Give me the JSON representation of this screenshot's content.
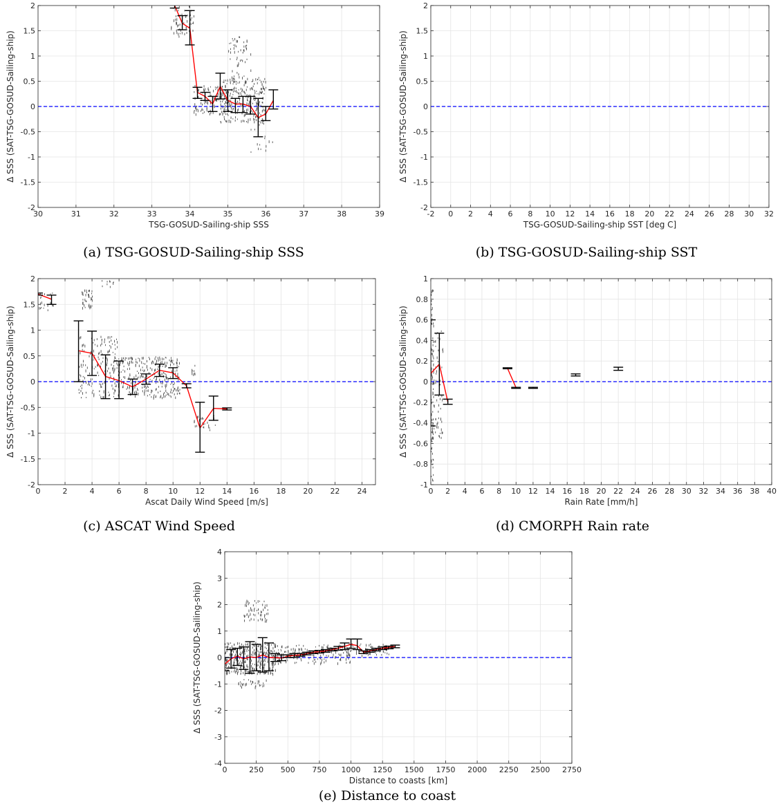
{
  "colors": {
    "mean": "#ff0000",
    "zero": "#0000ff",
    "errorbar": "#000000",
    "scatter": "#4d4d4d"
  },
  "chart_data": [
    {
      "id": "a",
      "type": "line",
      "caption": "(a) TSG-GOSUD-Sailing-ship SSS",
      "xlabel": "TSG-GOSUD-Sailing-ship SSS",
      "ylabel": "Δ SSS (SAT-TSG-GOSUD-Sailing-ship)",
      "xlim": [
        30,
        39
      ],
      "ylim": [
        -2,
        2
      ],
      "xticks": [
        30,
        31,
        32,
        33,
        34,
        35,
        36,
        37,
        38,
        39
      ],
      "yticks": [
        -2,
        -1.5,
        -1,
        -0.5,
        0,
        0.5,
        1,
        1.5,
        2
      ],
      "grid": true,
      "zero_line": 0,
      "mean": {
        "x": [
          33.6,
          33.8,
          34.0,
          34.2,
          34.4,
          34.6,
          34.8,
          35.0,
          35.2,
          35.4,
          35.6,
          35.8,
          36.0,
          36.2
        ],
        "y": [
          2.0,
          1.65,
          1.55,
          0.28,
          0.2,
          0.05,
          0.4,
          0.12,
          0.05,
          0.05,
          0.0,
          -0.22,
          -0.15,
          0.12
        ]
      },
      "errorbars": [
        {
          "x": 33.6,
          "lo": 1.95,
          "hi": 2.05
        },
        {
          "x": 33.8,
          "lo": 1.52,
          "hi": 1.8
        },
        {
          "x": 34.0,
          "lo": 1.22,
          "hi": 1.9
        },
        {
          "x": 34.2,
          "lo": 0.16,
          "hi": 0.38
        },
        {
          "x": 34.4,
          "lo": 0.12,
          "hi": 0.28
        },
        {
          "x": 34.6,
          "lo": -0.1,
          "hi": 0.2
        },
        {
          "x": 34.8,
          "lo": 0.15,
          "hi": 0.66
        },
        {
          "x": 35.0,
          "lo": -0.1,
          "hi": 0.33
        },
        {
          "x": 35.2,
          "lo": -0.12,
          "hi": 0.16
        },
        {
          "x": 35.4,
          "lo": -0.12,
          "hi": 0.2
        },
        {
          "x": 35.6,
          "lo": -0.15,
          "hi": 0.2
        },
        {
          "x": 35.8,
          "lo": -0.6,
          "hi": 0.16
        },
        {
          "x": 36.0,
          "lo": -0.28,
          "hi": 0.0
        },
        {
          "x": 36.2,
          "lo": -0.05,
          "hi": 0.33
        }
      ],
      "scatter_clusters": [
        {
          "x0": 33.5,
          "x1": 34.1,
          "y0": 1.4,
          "y1": 2.0,
          "n": 60
        },
        {
          "x0": 34.1,
          "x1": 35.0,
          "y0": -0.15,
          "y1": 0.45,
          "n": 120
        },
        {
          "x0": 34.8,
          "x1": 36.0,
          "y0": -0.3,
          "y1": 0.6,
          "n": 260
        },
        {
          "x0": 35.0,
          "x1": 35.6,
          "y0": 0.6,
          "y1": 1.4,
          "n": 50
        },
        {
          "x0": 35.6,
          "x1": 36.2,
          "y0": -0.9,
          "y1": -0.3,
          "n": 15
        }
      ]
    },
    {
      "id": "b",
      "type": "line",
      "caption": "(b) TSG-GOSUD-Sailing-ship SST",
      "xlabel": "TSG-GOSUD-Sailing-ship SST [deg C]",
      "ylabel": "Δ SSS (SAT-TSG-GOSUD-Sailing-ship)",
      "xlim": [
        -2,
        32
      ],
      "ylim": [
        -2,
        2
      ],
      "xticks": [
        -2,
        0,
        2,
        4,
        6,
        8,
        10,
        12,
        14,
        16,
        18,
        20,
        22,
        24,
        26,
        28,
        30,
        32
      ],
      "yticks": [
        -2,
        -1.5,
        -1,
        -0.5,
        0,
        0.5,
        1,
        1.5,
        2
      ],
      "grid": true,
      "zero_line": 0,
      "mean": {
        "x": [],
        "y": []
      },
      "errorbars": [],
      "scatter_clusters": []
    },
    {
      "id": "c",
      "type": "line",
      "caption": "(c) ASCAT Wind Speed",
      "xlabel": "Ascat Daily Wind Speed [m/s]",
      "ylabel": "Δ SSS (SAT-TSG-GOSUD-Sailing-ship)",
      "xlim": [
        0,
        25
      ],
      "ylim": [
        -2,
        2
      ],
      "xticks": [
        0,
        2,
        4,
        6,
        8,
        10,
        12,
        14,
        16,
        18,
        20,
        22,
        24
      ],
      "yticks": [
        -2,
        -1.5,
        -1,
        -0.5,
        0,
        0.5,
        1,
        1.5,
        2
      ],
      "grid": true,
      "zero_line": 0,
      "mean": {
        "x": [
          0,
          1,
          null,
          3,
          4,
          5,
          6,
          7,
          8,
          9,
          10,
          11,
          12,
          13,
          14
        ],
        "y": [
          1.7,
          1.6,
          null,
          0.6,
          0.55,
          0.1,
          0.02,
          -0.1,
          0.05,
          0.22,
          0.17,
          -0.08,
          -0.9,
          -0.52,
          -0.53
        ]
      },
      "errorbars": [
        {
          "x": 0,
          "lo": 1.68,
          "hi": 1.72
        },
        {
          "x": 1,
          "lo": 1.5,
          "hi": 1.68
        },
        {
          "x": 3,
          "lo": 0.0,
          "hi": 1.18
        },
        {
          "x": 4,
          "lo": 0.12,
          "hi": 0.98
        },
        {
          "x": 5,
          "lo": -0.33,
          "hi": 0.52
        },
        {
          "x": 6,
          "lo": -0.33,
          "hi": 0.4
        },
        {
          "x": 7,
          "lo": -0.25,
          "hi": 0.05
        },
        {
          "x": 8,
          "lo": -0.05,
          "hi": 0.15
        },
        {
          "x": 9,
          "lo": 0.1,
          "hi": 0.34
        },
        {
          "x": 10,
          "lo": 0.06,
          "hi": 0.27
        },
        {
          "x": 11,
          "lo": -0.12,
          "hi": -0.04
        },
        {
          "x": 12,
          "lo": -1.37,
          "hi": -0.4
        },
        {
          "x": 13,
          "lo": -0.75,
          "hi": -0.28
        },
        {
          "x": 14,
          "lo": -0.55,
          "hi": -0.51
        }
      ],
      "scatter_clusters": [
        {
          "x0": 0.0,
          "x1": 1.2,
          "y0": 1.4,
          "y1": 1.75,
          "n": 20
        },
        {
          "x0": 3.2,
          "x1": 4.0,
          "y0": 1.45,
          "y1": 1.8,
          "n": 40
        },
        {
          "x0": 4.6,
          "x1": 5.6,
          "y0": 1.85,
          "y1": 2.0,
          "n": 10
        },
        {
          "x0": 3.0,
          "x1": 6.0,
          "y0": -0.3,
          "y1": 0.9,
          "n": 160
        },
        {
          "x0": 5.5,
          "x1": 10.5,
          "y0": -0.3,
          "y1": 0.5,
          "n": 320
        },
        {
          "x0": 11.3,
          "x1": 11.8,
          "y0": 0.15,
          "y1": 0.35,
          "n": 10
        },
        {
          "x0": 11.5,
          "x1": 13.2,
          "y0": -0.95,
          "y1": -0.65,
          "n": 25
        }
      ]
    },
    {
      "id": "d",
      "type": "line",
      "caption": "(d) CMORPH Rain rate",
      "xlabel": "Rain Rate [mm/h]",
      "ylabel": "Δ SSS (SAT-TSG-GOSUD-Sailing-ship)",
      "xlim": [
        0,
        40
      ],
      "ylim": [
        -1,
        1
      ],
      "xticks": [
        0,
        2,
        4,
        6,
        8,
        10,
        12,
        14,
        16,
        18,
        20,
        22,
        24,
        26,
        28,
        30,
        32,
        34,
        36,
        38,
        40
      ],
      "yticks": [
        -1,
        -0.8,
        -0.6,
        -0.4,
        -0.2,
        0,
        0.2,
        0.4,
        0.6,
        0.8,
        1
      ],
      "grid": true,
      "zero_line": 0,
      "mean": {
        "x": [
          0,
          1,
          2,
          null,
          9,
          10
        ],
        "y": [
          0.08,
          0.17,
          -0.2,
          null,
          0.13,
          -0.06
        ]
      },
      "errorbars": [
        {
          "x": 0,
          "lo": -0.43,
          "hi": 0.6
        },
        {
          "x": 1,
          "lo": -0.13,
          "hi": 0.47
        },
        {
          "x": 2,
          "lo": -0.22,
          "hi": -0.17
        },
        {
          "x": 9,
          "lo": 0.125,
          "hi": 0.135
        },
        {
          "x": 10,
          "lo": -0.065,
          "hi": -0.055
        },
        {
          "x": 12,
          "lo": -0.065,
          "hi": -0.055
        },
        {
          "x": 17,
          "lo": 0.055,
          "hi": 0.075
        },
        {
          "x": 22,
          "lo": 0.11,
          "hi": 0.14
        }
      ],
      "scatter_clusters": [
        {
          "x0": 0.0,
          "x1": 0.3,
          "y0": -1.0,
          "y1": 0.9,
          "n": 90
        },
        {
          "x0": 0.3,
          "x1": 1.4,
          "y0": -0.55,
          "y1": 0.5,
          "n": 60
        }
      ]
    },
    {
      "id": "e",
      "type": "line",
      "caption": "(e) Distance to coast",
      "xlabel": "Distance to coasts [km]",
      "ylabel": "Δ SSS (SAT-TSG-GOSUD-Sailing-ship)",
      "xlim": [
        0,
        2750
      ],
      "ylim": [
        -4,
        4
      ],
      "xticks": [
        0,
        250,
        500,
        750,
        1000,
        1250,
        1500,
        1750,
        2000,
        2250,
        2500,
        2750
      ],
      "yticks": [
        -4,
        -3,
        -2,
        -1,
        0,
        1,
        2,
        3,
        4
      ],
      "grid": true,
      "zero_line": 0,
      "mean": {
        "x": [
          0,
          50,
          100,
          150,
          200,
          250,
          300,
          350,
          400,
          450,
          500,
          550,
          600,
          650,
          700,
          750,
          800,
          850,
          900,
          950,
          1000,
          1050,
          1100,
          1150,
          1200,
          1250,
          1300,
          1350
        ],
        "y": [
          -0.25,
          -0.05,
          0.05,
          -0.05,
          0.02,
          0.0,
          0.1,
          0.0,
          0.0,
          -0.02,
          0.05,
          0.08,
          0.1,
          0.15,
          0.2,
          0.22,
          0.25,
          0.3,
          0.35,
          0.42,
          0.5,
          0.45,
          0.2,
          0.25,
          0.3,
          0.35,
          0.38,
          0.42
        ]
      },
      "errorbars": [
        {
          "x": 0,
          "lo": -0.5,
          "hi": 0.0
        },
        {
          "x": 50,
          "lo": -0.4,
          "hi": 0.3
        },
        {
          "x": 100,
          "lo": -0.3,
          "hi": 0.35
        },
        {
          "x": 150,
          "lo": -0.45,
          "hi": 0.4
        },
        {
          "x": 200,
          "lo": -0.6,
          "hi": 0.6
        },
        {
          "x": 250,
          "lo": -0.5,
          "hi": 0.5
        },
        {
          "x": 300,
          "lo": -0.55,
          "hi": 0.75
        },
        {
          "x": 350,
          "lo": -0.5,
          "hi": 0.55
        },
        {
          "x": 400,
          "lo": -0.15,
          "hi": 0.15
        },
        {
          "x": 450,
          "lo": -0.12,
          "hi": 0.1
        },
        {
          "x": 500,
          "lo": 0.0,
          "hi": 0.1
        },
        {
          "x": 550,
          "lo": 0.0,
          "hi": 0.15
        },
        {
          "x": 600,
          "lo": 0.05,
          "hi": 0.15
        },
        {
          "x": 650,
          "lo": 0.1,
          "hi": 0.2
        },
        {
          "x": 700,
          "lo": 0.15,
          "hi": 0.25
        },
        {
          "x": 750,
          "lo": 0.17,
          "hi": 0.27
        },
        {
          "x": 800,
          "lo": 0.2,
          "hi": 0.3
        },
        {
          "x": 850,
          "lo": 0.25,
          "hi": 0.35
        },
        {
          "x": 900,
          "lo": 0.28,
          "hi": 0.42
        },
        {
          "x": 950,
          "lo": 0.3,
          "hi": 0.55
        },
        {
          "x": 1000,
          "lo": 0.35,
          "hi": 0.7
        },
        {
          "x": 1050,
          "lo": 0.3,
          "hi": 0.7
        },
        {
          "x": 1100,
          "lo": 0.15,
          "hi": 0.25
        },
        {
          "x": 1150,
          "lo": 0.2,
          "hi": 0.3
        },
        {
          "x": 1200,
          "lo": 0.25,
          "hi": 0.35
        },
        {
          "x": 1250,
          "lo": 0.3,
          "hi": 0.4
        },
        {
          "x": 1300,
          "lo": 0.33,
          "hi": 0.43
        },
        {
          "x": 1350,
          "lo": 0.37,
          "hi": 0.47
        }
      ],
      "scatter_clusters": [
        {
          "x0": 0,
          "x1": 400,
          "y0": -0.6,
          "y1": 0.6,
          "n": 360
        },
        {
          "x0": 150,
          "x1": 350,
          "y0": 1.4,
          "y1": 2.2,
          "n": 60
        },
        {
          "x0": 100,
          "x1": 330,
          "y0": -1.1,
          "y1": -0.8,
          "n": 30
        },
        {
          "x0": 400,
          "x1": 1000,
          "y0": -0.2,
          "y1": 0.5,
          "n": 160
        },
        {
          "x0": 950,
          "x1": 1300,
          "y0": 0.1,
          "y1": 0.55,
          "n": 60
        }
      ]
    }
  ]
}
